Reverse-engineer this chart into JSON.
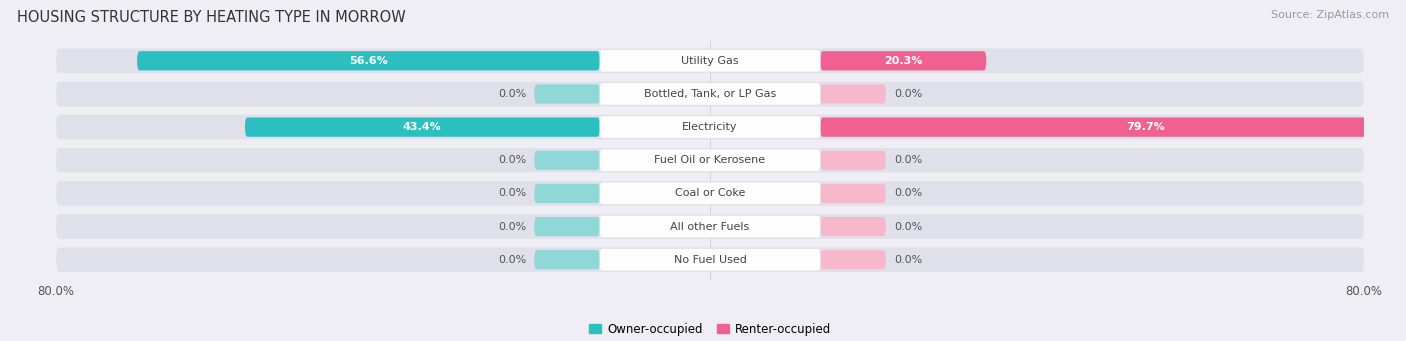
{
  "title": "HOUSING STRUCTURE BY HEATING TYPE IN MORROW",
  "source": "Source: ZipAtlas.com",
  "categories": [
    "Utility Gas",
    "Bottled, Tank, or LP Gas",
    "Electricity",
    "Fuel Oil or Kerosene",
    "Coal or Coke",
    "All other Fuels",
    "No Fuel Used"
  ],
  "owner_values": [
    56.6,
    0.0,
    43.4,
    0.0,
    0.0,
    0.0,
    0.0
  ],
  "renter_values": [
    20.3,
    0.0,
    79.7,
    0.0,
    0.0,
    0.0,
    0.0
  ],
  "owner_color": "#2bbfbf",
  "renter_color": "#f06090",
  "owner_color_zero": "#90d8d8",
  "renter_color_zero": "#f8b8cc",
  "background_color": "#eeeef4",
  "row_bg_color": "#e0e0ea",
  "label_bg_color": "#ffffff",
  "label_text_color": "#444444",
  "value_color_inside": "#ffffff",
  "value_color_outside": "#555555",
  "x_max": 80.0,
  "zero_stub": 8.0,
  "legend_owner": "Owner-occupied",
  "legend_renter": "Renter-occupied",
  "title_fontsize": 10.5,
  "source_fontsize": 8,
  "label_fontsize": 8,
  "value_fontsize": 8,
  "tick_fontsize": 8.5
}
